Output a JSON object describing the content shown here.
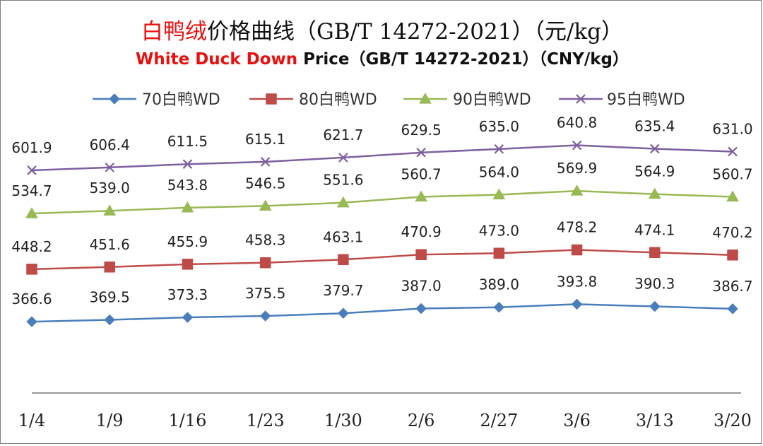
{
  "title": {
    "cn_accent": "白鸭绒",
    "cn_rest": "价格曲线（GB/T 14272-2021）（元/kg）",
    "en_accent": "White Duck Down",
    "en_rest": " Price（GB/T 14272-2021）（CNY/kg）"
  },
  "colors": {
    "accent_red": "#e8100e",
    "title_black": "#111111"
  },
  "chart_data": {
    "type": "line",
    "categories": [
      "1/4",
      "1/9",
      "1/16",
      "1/23",
      "1/30",
      "2/6",
      "2/27",
      "3/6",
      "3/13",
      "3/20"
    ],
    "ylim": [
      280,
      680
    ],
    "grid": false,
    "legend_position": "top",
    "series": [
      {
        "name": "70白鸭WD",
        "color": "#4a7ebb",
        "marker": "diamond",
        "values": [
          366.6,
          369.5,
          373.3,
          375.5,
          379.7,
          387.0,
          389.0,
          393.8,
          390.3,
          386.7
        ],
        "labels": [
          "366.6",
          "369.5",
          "373.3",
          "375.5",
          "379.7",
          "387.0",
          "389.0",
          "393.8",
          "390.3",
          "386.7"
        ]
      },
      {
        "name": "80白鸭WD",
        "color": "#be4b48",
        "marker": "square",
        "values": [
          448.2,
          451.6,
          455.9,
          458.3,
          463.1,
          470.9,
          473.0,
          478.2,
          474.1,
          470.2
        ],
        "labels": [
          "448.2",
          "451.6",
          "455.9",
          "458.3",
          "463.1",
          "470.9",
          "473.0",
          "478.2",
          "474.1",
          "470.2"
        ]
      },
      {
        "name": "90白鸭WD",
        "color": "#98b954",
        "marker": "triangle",
        "values": [
          534.7,
          539.0,
          543.8,
          546.5,
          551.6,
          560.7,
          564.0,
          569.9,
          564.9,
          560.7
        ],
        "labels": [
          "534.7",
          "539.0",
          "543.8",
          "546.5",
          "551.6",
          "560.7",
          "564.0",
          "569.9",
          "564.9",
          "560.7"
        ]
      },
      {
        "name": "95白鸭WD",
        "color": "#7d60a0",
        "marker": "x",
        "values": [
          601.9,
          606.4,
          611.5,
          615.1,
          621.7,
          629.5,
          635.0,
          640.8,
          635.4,
          631.0
        ],
        "labels": [
          "601.9",
          "606.4",
          "611.5",
          "615.1",
          "621.7",
          "629.5",
          "635.0",
          "640.8",
          "635.4",
          "631.0"
        ]
      }
    ]
  }
}
